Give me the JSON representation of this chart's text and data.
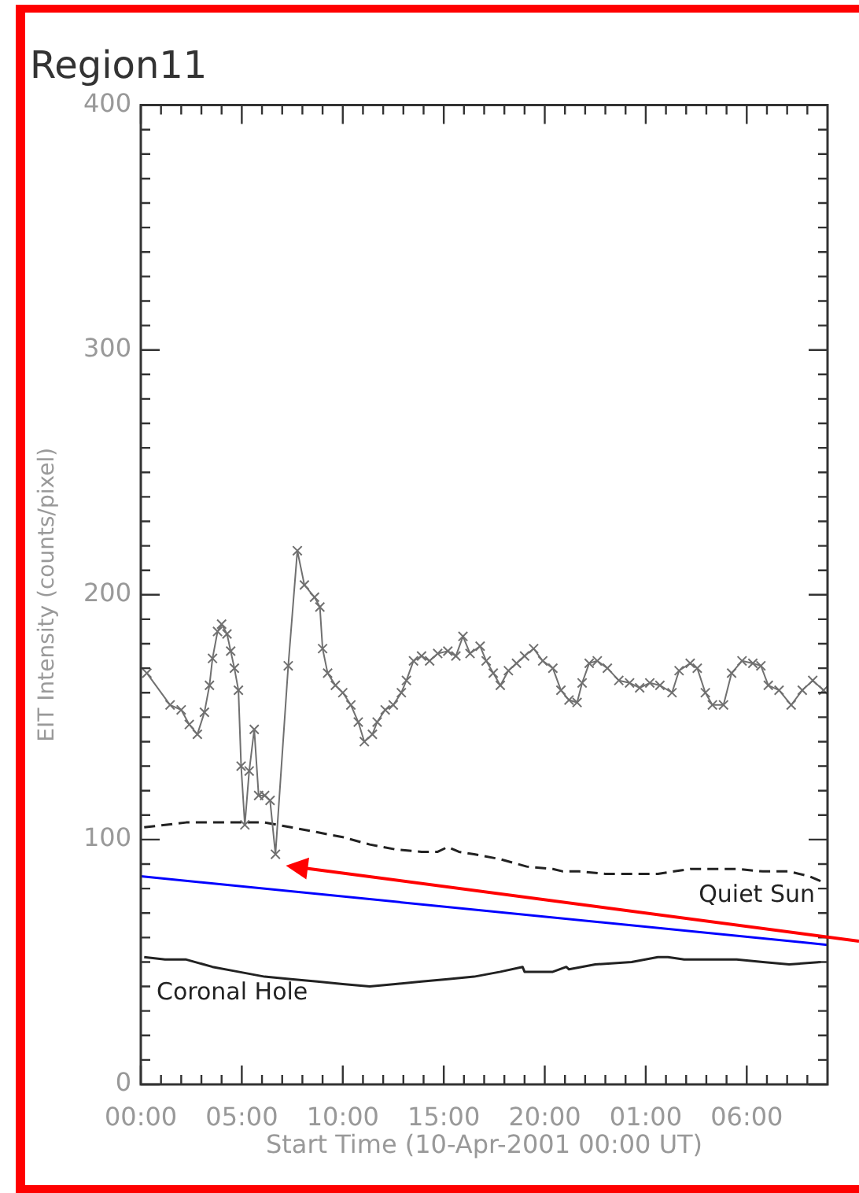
{
  "chart_data": {
    "type": "line",
    "title": "Region11",
    "xlabel": "Start Time (10-Apr-2001 00:00 UT)",
    "ylabel": "EIT Intensity (counts/pixel)",
    "xlim": [
      "2001-04-10T00:00",
      "2001-04-11T10:00"
    ],
    "ylim": [
      0,
      400
    ],
    "xticks": [
      {
        "value": "2001-04-10T00:00",
        "label": "00:00"
      },
      {
        "value": "2001-04-10T01:00",
        "label": null
      },
      {
        "value": "2001-04-10T02:00",
        "label": null
      },
      {
        "value": "2001-04-10T03:00",
        "label": null
      },
      {
        "value": "2001-04-10T04:00",
        "label": null
      },
      {
        "value": "2001-04-10T05:00",
        "label": "05:00"
      },
      {
        "value": "2001-04-10T06:00",
        "label": null
      },
      {
        "value": "2001-04-10T07:00",
        "label": null
      },
      {
        "value": "2001-04-10T08:00",
        "label": null
      },
      {
        "value": "2001-04-10T09:00",
        "label": null
      },
      {
        "value": "2001-04-10T10:00",
        "label": "10:00"
      },
      {
        "value": "2001-04-10T11:00",
        "label": null
      },
      {
        "value": "2001-04-10T12:00",
        "label": null
      },
      {
        "value": "2001-04-10T13:00",
        "label": null
      },
      {
        "value": "2001-04-10T14:00",
        "label": null
      },
      {
        "value": "2001-04-10T15:00",
        "label": "15:00"
      },
      {
        "value": "2001-04-10T16:00",
        "label": null
      },
      {
        "value": "2001-04-10T17:00",
        "label": null
      },
      {
        "value": "2001-04-10T18:00",
        "label": null
      },
      {
        "value": "2001-04-10T19:00",
        "label": null
      },
      {
        "value": "2001-04-10T20:00",
        "label": "20:00"
      },
      {
        "value": "2001-04-10T21:00",
        "label": null
      },
      {
        "value": "2001-04-10T22:00",
        "label": null
      },
      {
        "value": "2001-04-10T23:00",
        "label": null
      },
      {
        "value": "2001-04-11T00:00",
        "label": null
      },
      {
        "value": "2001-04-11T01:00",
        "label": "01:00"
      },
      {
        "value": "2001-04-11T02:00",
        "label": null
      },
      {
        "value": "2001-04-11T03:00",
        "label": null
      },
      {
        "value": "2001-04-11T04:00",
        "label": null
      },
      {
        "value": "2001-04-11T05:00",
        "label": null
      },
      {
        "value": "2001-04-11T06:00",
        "label": "06:00"
      },
      {
        "value": "2001-04-11T07:00",
        "label": null
      },
      {
        "value": "2001-04-11T08:00",
        "label": null
      },
      {
        "value": "2001-04-11T09:00",
        "label": null
      }
    ],
    "yticks": [
      0,
      {
        "value": 10,
        "label": null
      },
      {
        "value": 20,
        "label": null
      },
      {
        "value": 30,
        "label": null
      },
      {
        "value": 40,
        "label": null
      },
      {
        "value": 50,
        "label": null
      },
      {
        "value": 60,
        "label": null
      },
      {
        "value": 70,
        "label": null
      },
      {
        "value": 80,
        "label": null
      },
      {
        "value": 90,
        "label": null
      },
      100,
      {
        "value": 110,
        "label": null
      },
      {
        "value": 120,
        "label": null
      },
      {
        "value": 130,
        "label": null
      },
      {
        "value": 140,
        "label": null
      },
      {
        "value": 150,
        "label": null
      },
      {
        "value": 160,
        "label": null
      },
      {
        "value": 170,
        "label": null
      },
      {
        "value": 180,
        "label": null
      },
      {
        "value": 190,
        "label": null
      },
      200,
      {
        "value": 210,
        "label": null
      },
      {
        "value": 220,
        "label": null
      },
      {
        "value": 230,
        "label": null
      },
      {
        "value": 240,
        "label": null
      },
      {
        "value": 250,
        "label": null
      },
      {
        "value": 260,
        "label": null
      },
      {
        "value": 270,
        "label": null
      },
      {
        "value": 280,
        "label": null
      },
      {
        "value": 290,
        "label": null
      },
      300,
      {
        "value": 310,
        "label": null
      },
      {
        "value": 320,
        "label": null
      },
      {
        "value": 330,
        "label": null
      },
      {
        "value": 340,
        "label": null
      },
      {
        "value": 350,
        "label": null
      },
      {
        "value": 360,
        "label": null
      },
      {
        "value": 370,
        "label": null
      },
      {
        "value": 380,
        "label": null
      },
      {
        "value": 390,
        "label": null
      },
      400
    ],
    "series": [
      {
        "color": "#707070",
        "marker": "cross",
        "line_style": "solid",
        "x": [
          "2001-04-10T00:18",
          "2001-04-10T01:27",
          "2001-04-10T02:00",
          "2001-04-10T02:24",
          "2001-04-10T02:48",
          "2001-04-10T03:09",
          "2001-04-10T03:24",
          "2001-04-10T03:33",
          "2001-04-10T03:48",
          "2001-04-10T04:00",
          "2001-04-10T04:16",
          "2001-04-10T04:27",
          "2001-04-10T04:38",
          "2001-04-10T04:50",
          "2001-04-10T04:58",
          "2001-04-10T05:09",
          "2001-04-10T05:22",
          "2001-04-10T05:37",
          "2001-04-10T05:50",
          "2001-04-10T06:08",
          "2001-04-10T06:24",
          "2001-04-10T06:40",
          "2001-04-10T07:18",
          "2001-04-10T07:45",
          "2001-04-10T08:06",
          "2001-04-10T08:36",
          "2001-04-10T08:52",
          "2001-04-10T09:00",
          "2001-04-10T09:15",
          "2001-04-10T09:38",
          "2001-04-10T10:00",
          "2001-04-10T10:24",
          "2001-04-10T10:46",
          "2001-04-10T11:04",
          "2001-04-10T11:28",
          "2001-04-10T11:42",
          "2001-04-10T12:06",
          "2001-04-10T12:30",
          "2001-04-10T12:54",
          "2001-04-10T13:09",
          "2001-04-10T13:30",
          "2001-04-10T13:54",
          "2001-04-10T14:18",
          "2001-04-10T14:42",
          "2001-04-10T15:12",
          "2001-04-10T15:36",
          "2001-04-10T15:57",
          "2001-04-10T16:18",
          "2001-04-10T16:48",
          "2001-04-10T17:06",
          "2001-04-10T17:27",
          "2001-04-10T17:48",
          "2001-04-10T18:12",
          "2001-04-10T18:36",
          "2001-04-10T19:00",
          "2001-04-10T19:27",
          "2001-04-10T19:54",
          "2001-04-10T20:24",
          "2001-04-10T20:48",
          "2001-04-10T21:12",
          "2001-04-10T21:36",
          "2001-04-10T21:51",
          "2001-04-10T22:12",
          "2001-04-10T22:36",
          "2001-04-10T23:06",
          "2001-04-10T23:40",
          "2001-04-11T00:12",
          "2001-04-11T00:42",
          "2001-04-11T01:12",
          "2001-04-11T01:42",
          "2001-04-11T02:18",
          "2001-04-11T02:39",
          "2001-04-11T03:12",
          "2001-04-11T03:33",
          "2001-04-11T03:57",
          "2001-04-11T04:18",
          "2001-04-11T04:51",
          "2001-04-11T05:15",
          "2001-04-11T05:46",
          "2001-04-11T06:18",
          "2001-04-11T06:42",
          "2001-04-11T07:04",
          "2001-04-11T07:36",
          "2001-04-11T08:12",
          "2001-04-11T08:45",
          "2001-04-11T09:16",
          "2001-04-11T09:48"
        ],
        "values": [
          168,
          155,
          153,
          147,
          143,
          152,
          163,
          174,
          185,
          188,
          184,
          177,
          170,
          161,
          130,
          106,
          128,
          145,
          118,
          118,
          116,
          94,
          171,
          218,
          204,
          199,
          195,
          178,
          168,
          163,
          160,
          155,
          148,
          140,
          143,
          148,
          153,
          155,
          160,
          165,
          173,
          175,
          173,
          176,
          177,
          175,
          183,
          176,
          179,
          173,
          168,
          163,
          169,
          172,
          175,
          178,
          173,
          170,
          161,
          157,
          156,
          164,
          172,
          173,
          170,
          165,
          164,
          162,
          164,
          163,
          160,
          169,
          172,
          170,
          160,
          155,
          155,
          168,
          173,
          172,
          171,
          163,
          161,
          155,
          161,
          165,
          161
        ]
      },
      {
        "name": "Quiet Sun",
        "color": "#222222",
        "marker": "none",
        "line_style": "dashed",
        "x": [
          "2001-04-10T00:10",
          "2001-04-10T01:12",
          "2001-04-10T02:15",
          "2001-04-10T03:33",
          "2001-04-10T04:50",
          "2001-04-10T06:08",
          "2001-04-10T07:26",
          "2001-04-10T08:44",
          "2001-04-10T10:00",
          "2001-04-10T11:20",
          "2001-04-10T12:36",
          "2001-04-10T13:54",
          "2001-04-10T14:42",
          "2001-04-10T15:12",
          "2001-04-10T15:45",
          "2001-04-10T16:30",
          "2001-04-10T17:48",
          "2001-04-10T19:06",
          "2001-04-10T20:24",
          "2001-04-10T20:54",
          "2001-04-10T21:42",
          "2001-04-10T23:00",
          "2001-04-11T00:18",
          "2001-04-11T01:36",
          "2001-04-11T02:24",
          "2001-04-11T03:12",
          "2001-04-11T04:12",
          "2001-04-11T05:30",
          "2001-04-11T06:48",
          "2001-04-11T08:06",
          "2001-04-11T09:06",
          "2001-04-11T09:40"
        ],
        "values": [
          105,
          106,
          107,
          107,
          107,
          107,
          105,
          103,
          101,
          98,
          96,
          95,
          95,
          97,
          95,
          94,
          92,
          89,
          88,
          87,
          87,
          86,
          86,
          86,
          87,
          88,
          88,
          88,
          87,
          87,
          85,
          83
        ]
      },
      {
        "name": "Coronal Hole",
        "color": "#222222",
        "marker": "none",
        "line_style": "solid",
        "x": [
          "2001-04-10T00:10",
          "2001-04-10T01:12",
          "2001-04-10T02:15",
          "2001-04-10T03:33",
          "2001-04-10T04:50",
          "2001-04-10T06:08",
          "2001-04-10T07:26",
          "2001-04-10T08:44",
          "2001-04-10T10:00",
          "2001-04-10T11:20",
          "2001-04-10T12:36",
          "2001-04-10T13:54",
          "2001-04-10T15:12",
          "2001-04-10T16:30",
          "2001-04-10T17:48",
          "2001-04-10T18:54",
          "2001-04-10T19:00",
          "2001-04-10T20:24",
          "2001-04-10T21:04",
          "2001-04-10T21:12",
          "2001-04-10T22:30",
          "2001-04-11T00:18",
          "2001-04-11T01:36",
          "2001-04-11T02:06",
          "2001-04-11T02:54",
          "2001-04-11T04:12",
          "2001-04-11T05:30",
          "2001-04-11T06:48",
          "2001-04-11T08:06",
          "2001-04-11T09:40"
        ],
        "values": [
          52,
          51,
          51,
          48,
          46,
          44,
          43,
          42,
          41,
          40,
          41,
          42,
          43,
          44,
          46,
          48,
          46,
          46,
          48,
          47,
          49,
          50,
          52,
          52,
          51,
          51,
          51,
          50,
          49,
          50
        ]
      },
      {
        "color": "#0000ff",
        "marker": "none",
        "line_style": "solid",
        "x": [
          "2001-04-10T00:00",
          "2001-04-11T10:00"
        ],
        "values": [
          85,
          57
        ]
      }
    ]
  }
}
